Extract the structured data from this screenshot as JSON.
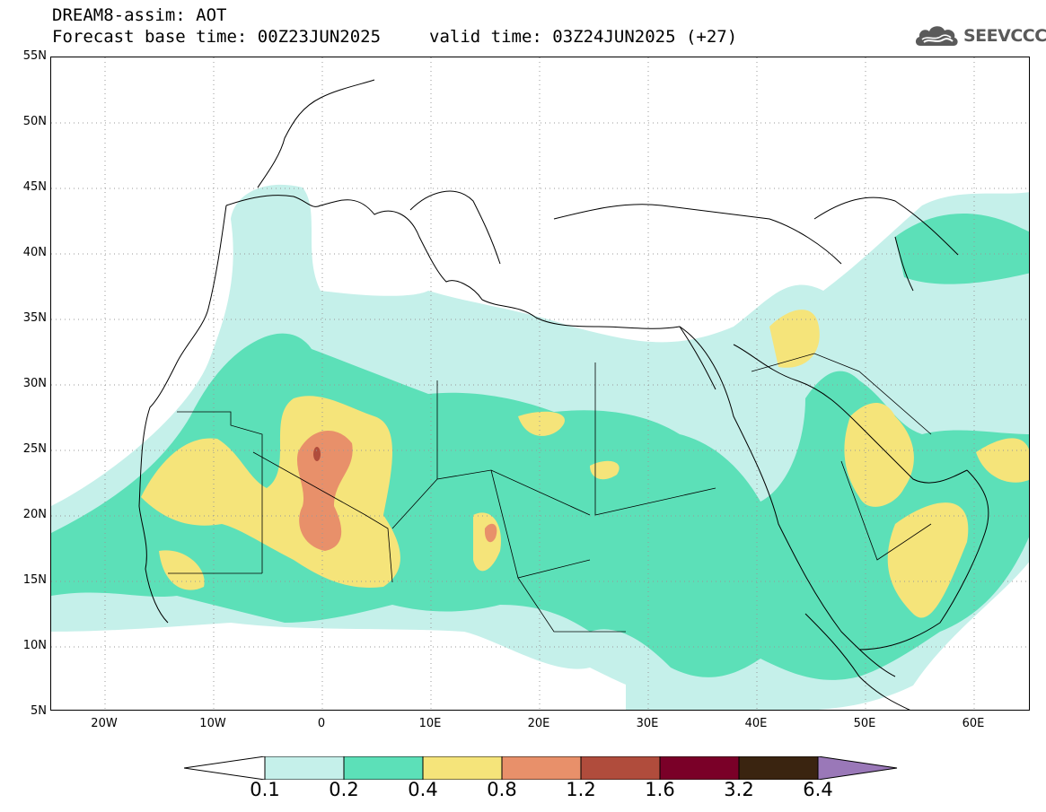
{
  "header": {
    "line1": "DREAM8-assim: AOT",
    "line2": "Forecast base time: 00Z23JUN2025",
    "line3": "valid time: 03Z24JUN2025 (+27)",
    "logo_text": "SEEVCCC",
    "logo_icon": "cloud-icon",
    "logo_color": "#5a5a5a"
  },
  "axes": {
    "lat_labels": [
      "55N",
      "50N",
      "45N",
      "40N",
      "35N",
      "30N",
      "25N",
      "20N",
      "15N",
      "10N",
      "5N"
    ],
    "lon_labels": [
      "20W",
      "10W",
      "0",
      "10E",
      "20E",
      "30E",
      "40E",
      "50E",
      "60E"
    ]
  },
  "legend": {
    "labels": [
      "0.1",
      "0.2",
      "0.4",
      "0.8",
      "1.2",
      "1.6",
      "3.2",
      "6.4"
    ],
    "colors": [
      "#ffffff",
      "#c5f0ea",
      "#5ce0b8",
      "#f5e47a",
      "#e8906a",
      "#b04c3c",
      "#7a0028",
      "#3a2410",
      "#9a78b8"
    ]
  }
}
